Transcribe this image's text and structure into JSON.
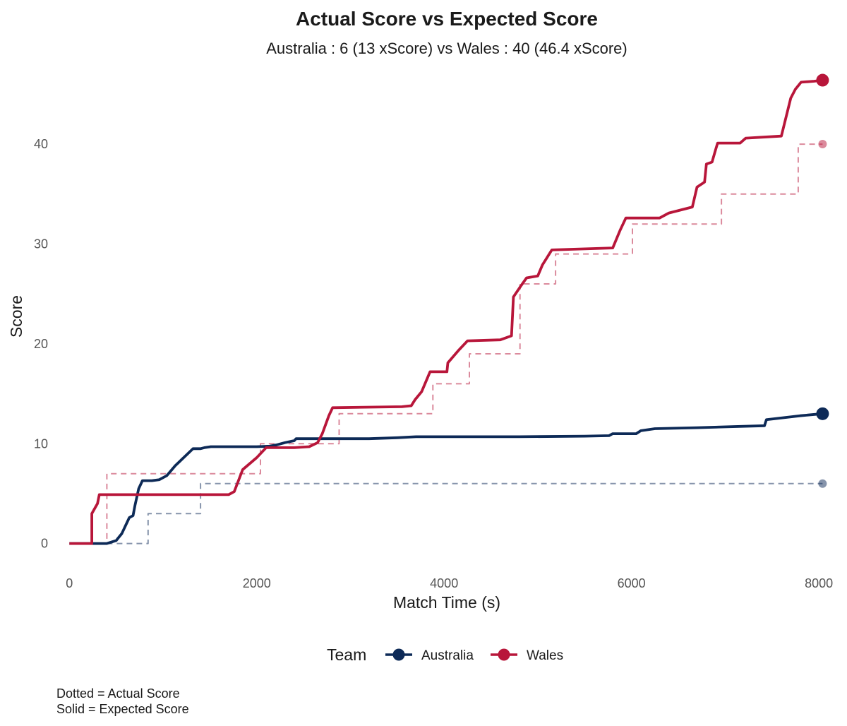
{
  "chart_data": {
    "type": "line",
    "title": "Actual Score vs Expected Score",
    "subtitle": "Australia : 6 (13 xScore) vs Wales : 40 (46.4 xScore)",
    "xlabel": "Match Time (s)",
    "ylabel": "Score",
    "xlim": [
      -100,
      8150
    ],
    "ylim": [
      -2.5,
      47.5
    ],
    "x_ticks": [
      0,
      2000,
      4000,
      6000,
      8000
    ],
    "x_tick_labels": [
      "0",
      "2000",
      "4000",
      "6000",
      "8000"
    ],
    "y_ticks": [
      0,
      10,
      20,
      30,
      40
    ],
    "y_tick_labels": [
      "0",
      "10",
      "20",
      "30",
      "40"
    ],
    "grid": false,
    "legend": {
      "title": "Team",
      "position": "bottom",
      "entries": [
        "Australia",
        "Wales"
      ]
    },
    "caption": [
      "Dotted = Actual Score",
      "Solid = Expected Score"
    ],
    "colors": {
      "Australia": "#0d2a57",
      "Wales": "#b8163a"
    },
    "series": [
      {
        "team": "Australia",
        "kind": "Expected Score",
        "style": "solid",
        "end_marker": true,
        "points": [
          [
            0,
            0
          ],
          [
            400,
            0
          ],
          [
            500,
            0.3
          ],
          [
            560,
            1
          ],
          [
            600,
            1.8
          ],
          [
            640,
            2.6
          ],
          [
            680,
            2.8
          ],
          [
            700,
            3.8
          ],
          [
            740,
            5.5
          ],
          [
            780,
            6.3
          ],
          [
            880,
            6.3
          ],
          [
            960,
            6.4
          ],
          [
            1040,
            6.8
          ],
          [
            1130,
            7.8
          ],
          [
            1220,
            8.6
          ],
          [
            1320,
            9.5
          ],
          [
            1400,
            9.5
          ],
          [
            1440,
            9.6
          ],
          [
            1510,
            9.7
          ],
          [
            1800,
            9.7
          ],
          [
            2000,
            9.7
          ],
          [
            2140,
            9.75
          ],
          [
            2220,
            9.9
          ],
          [
            2300,
            10.1
          ],
          [
            2400,
            10.3
          ],
          [
            2420,
            10.5
          ],
          [
            2700,
            10.5
          ],
          [
            3200,
            10.5
          ],
          [
            3500,
            10.6
          ],
          [
            3700,
            10.7
          ],
          [
            4200,
            10.7
          ],
          [
            4800,
            10.7
          ],
          [
            5500,
            10.75
          ],
          [
            5760,
            10.8
          ],
          [
            5800,
            11
          ],
          [
            6050,
            11
          ],
          [
            6100,
            11.3
          ],
          [
            6250,
            11.5
          ],
          [
            6700,
            11.6
          ],
          [
            7420,
            11.8
          ],
          [
            7440,
            12.4
          ],
          [
            7800,
            12.8
          ],
          [
            8040,
            13
          ]
        ]
      },
      {
        "team": "Australia",
        "kind": "Actual Score",
        "style": "dashed",
        "end_marker": true,
        "points": [
          [
            400,
            0
          ],
          [
            840,
            0
          ],
          [
            840,
            3
          ],
          [
            1400,
            3
          ],
          [
            1400,
            6
          ],
          [
            8040,
            6
          ]
        ]
      },
      {
        "team": "Wales",
        "kind": "Expected Score",
        "style": "solid",
        "end_marker": true,
        "points": [
          [
            0,
            0
          ],
          [
            240,
            0
          ],
          [
            240,
            3
          ],
          [
            300,
            4
          ],
          [
            320,
            4.9
          ],
          [
            1700,
            4.9
          ],
          [
            1760,
            5.2
          ],
          [
            1850,
            7.4
          ],
          [
            2000,
            8.6
          ],
          [
            2100,
            9.6
          ],
          [
            2400,
            9.6
          ],
          [
            2560,
            9.7
          ],
          [
            2650,
            10.1
          ],
          [
            2700,
            11
          ],
          [
            2770,
            12.8
          ],
          [
            2810,
            13.6
          ],
          [
            3550,
            13.7
          ],
          [
            3650,
            13.8
          ],
          [
            3690,
            14.4
          ],
          [
            3760,
            15.2
          ],
          [
            3850,
            17.2
          ],
          [
            4030,
            17.2
          ],
          [
            4040,
            18.1
          ],
          [
            4160,
            19.4
          ],
          [
            4250,
            20.3
          ],
          [
            4600,
            20.4
          ],
          [
            4720,
            20.8
          ],
          [
            4740,
            24.7
          ],
          [
            4820,
            25.8
          ],
          [
            4880,
            26.6
          ],
          [
            5000,
            26.8
          ],
          [
            5050,
            27.9
          ],
          [
            5150,
            29.4
          ],
          [
            5800,
            29.6
          ],
          [
            5880,
            31.4
          ],
          [
            5940,
            32.6
          ],
          [
            6300,
            32.6
          ],
          [
            6400,
            33.1
          ],
          [
            6650,
            33.7
          ],
          [
            6700,
            35.7
          ],
          [
            6780,
            36.2
          ],
          [
            6800,
            38
          ],
          [
            6860,
            38.2
          ],
          [
            6900,
            39.5
          ],
          [
            6920,
            40.1
          ],
          [
            7160,
            40.1
          ],
          [
            7220,
            40.6
          ],
          [
            7600,
            40.8
          ],
          [
            7700,
            44.6
          ],
          [
            7750,
            45.5
          ],
          [
            7810,
            46.2
          ],
          [
            7950,
            46.3
          ],
          [
            8040,
            46.4
          ]
        ]
      },
      {
        "team": "Wales",
        "kind": "Actual Score",
        "style": "dashed",
        "end_marker": true,
        "points": [
          [
            240,
            0
          ],
          [
            400,
            0
          ],
          [
            400,
            7
          ],
          [
            2040,
            7
          ],
          [
            2040,
            10
          ],
          [
            2880,
            10
          ],
          [
            2880,
            13
          ],
          [
            3880,
            13
          ],
          [
            3880,
            16
          ],
          [
            4270,
            16
          ],
          [
            4270,
            19
          ],
          [
            4810,
            19
          ],
          [
            4810,
            26
          ],
          [
            5190,
            26
          ],
          [
            5190,
            29
          ],
          [
            6010,
            29
          ],
          [
            6010,
            32
          ],
          [
            6960,
            32
          ],
          [
            6960,
            35
          ],
          [
            7780,
            35
          ],
          [
            7780,
            40
          ],
          [
            8040,
            40
          ]
        ]
      }
    ]
  }
}
